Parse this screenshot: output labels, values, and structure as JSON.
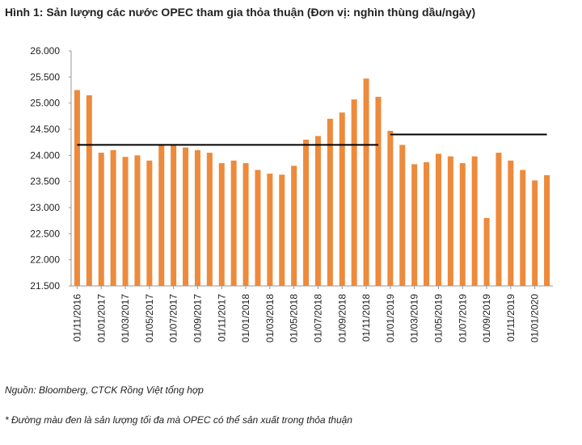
{
  "chart_data": {
    "type": "bar",
    "title": "Hình 1: Sản lượng các nước OPEC tham gia thỏa thuận (Đơn vị: nghìn thùng dầu/ngày)",
    "categories": [
      "01/11/2016",
      null,
      "01/01/2017",
      null,
      "01/03/2017",
      null,
      "01/05/2017",
      null,
      "01/07/2017",
      null,
      "01/09/2017",
      null,
      "01/11/2017",
      null,
      "01/01/2018",
      null,
      "01/03/2018",
      null,
      "01/05/2018",
      null,
      "01/07/2018",
      null,
      "01/09/2018",
      null,
      "01/11/2018",
      null,
      "01/01/2019",
      null,
      "01/03/2019",
      null,
      "01/05/2019",
      null,
      "01/07/2019",
      null,
      "01/09/2019",
      null,
      "01/11/2019",
      null,
      "01/01/2020",
      null
    ],
    "series": [
      {
        "type": "bar",
        "color": "#ed8a3c",
        "values": [
          25250,
          25150,
          24050,
          24100,
          23970,
          24000,
          23900,
          24200,
          24200,
          24150,
          24100,
          24050,
          23850,
          23900,
          23850,
          23720,
          23650,
          23630,
          23800,
          24300,
          24370,
          24700,
          24820,
          25070,
          25470,
          25120,
          24470,
          24200,
          23830,
          23870,
          24030,
          23980,
          23850,
          23980,
          22800,
          24050,
          23900,
          23720,
          23520,
          23620
        ]
      },
      {
        "type": "line",
        "color": "#000000",
        "values": [
          24200,
          24200,
          24200,
          24200,
          24200,
          24200,
          24200,
          24200,
          24200,
          24200,
          24200,
          24200,
          24200,
          24200,
          24200,
          24200,
          24200,
          24200,
          24200,
          24200,
          24200,
          24200,
          24200,
          24200,
          24200,
          24200,
          null,
          null,
          null,
          null,
          null,
          null,
          null,
          null,
          null,
          null,
          null,
          null,
          null,
          null
        ]
      },
      {
        "type": "line",
        "color": "#000000",
        "values": [
          null,
          null,
          null,
          null,
          null,
          null,
          null,
          null,
          null,
          null,
          null,
          null,
          null,
          null,
          null,
          null,
          null,
          null,
          null,
          null,
          null,
          null,
          null,
          null,
          null,
          null,
          24400,
          24400,
          24400,
          24400,
          24400,
          24400,
          24400,
          24400,
          24400,
          24400,
          24400,
          24400,
          24400,
          24400
        ]
      }
    ],
    "ylim": [
      21500,
      26000
    ],
    "yticks": [
      {
        "value": 21500,
        "label": "21.500"
      },
      {
        "value": 22000,
        "label": "22.000"
      },
      {
        "value": 22500,
        "label": "22.500"
      },
      {
        "value": 23000,
        "label": "23.000"
      },
      {
        "value": 23500,
        "label": "23.500"
      },
      {
        "value": 24000,
        "label": "24.000"
      },
      {
        "value": 24500,
        "label": "24.500"
      },
      {
        "value": 25000,
        "label": "25.000"
      },
      {
        "value": 25500,
        "label": "25.500"
      },
      {
        "value": 26000,
        "label": "26.000"
      }
    ],
    "source": "Nguồn: Bloomberg, CTCK Rồng Việt tổng hợp",
    "footnote": "* Đường màu đen là sản lượng tối đa mà OPEC có thể sản xuất trong thỏa thuận"
  }
}
